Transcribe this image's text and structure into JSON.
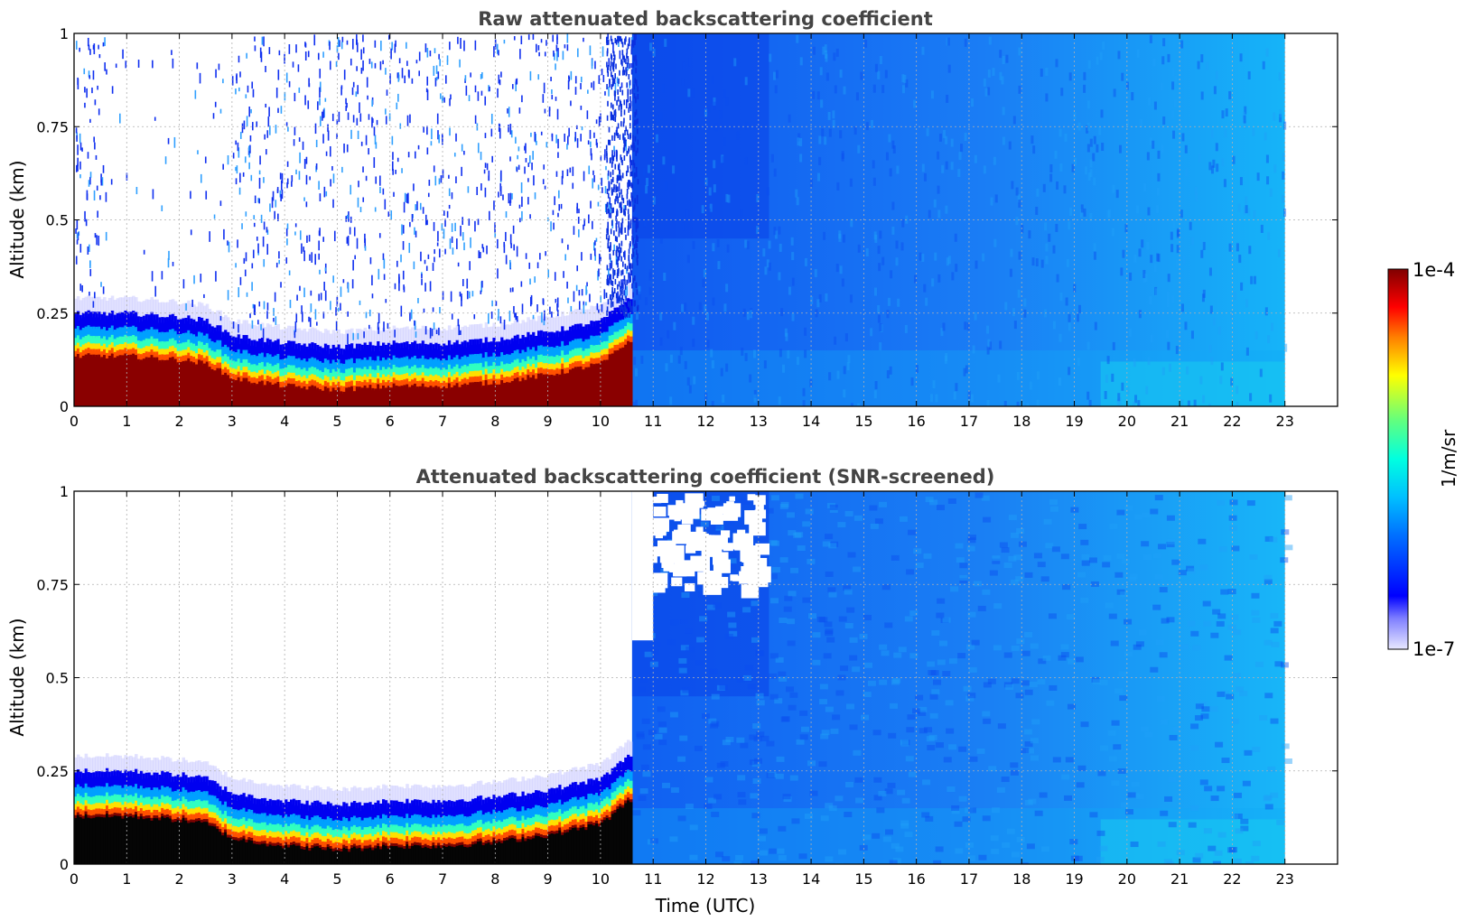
{
  "chart_data": [
    {
      "type": "heatmap",
      "title": "Raw attenuated backscattering coefficient",
      "xlabel": "",
      "ylabel": "Altitude (km)",
      "xlim": [
        0,
        24
      ],
      "ylim": [
        0,
        1
      ],
      "x_ticks": [
        "0",
        "1",
        "2",
        "3",
        "4",
        "5",
        "6",
        "7",
        "8",
        "9",
        "10",
        "11",
        "12",
        "13",
        "14",
        "15",
        "16",
        "17",
        "18",
        "19",
        "20",
        "21",
        "22",
        "23"
      ],
      "y_ticks": [
        "0",
        "0.25",
        "0.5",
        "0.75",
        "1"
      ],
      "grid": true,
      "data_extent_hours": [
        0,
        23
      ],
      "boundary_layer_top_km": [
        {
          "t": 0,
          "top": 0.25
        },
        {
          "t": 1,
          "top": 0.25
        },
        {
          "t": 2,
          "top": 0.24
        },
        {
          "t": 2.5,
          "top": 0.23
        },
        {
          "t": 3,
          "top": 0.19
        },
        {
          "t": 4,
          "top": 0.17
        },
        {
          "t": 5,
          "top": 0.16
        },
        {
          "t": 6,
          "top": 0.17
        },
        {
          "t": 7,
          "top": 0.17
        },
        {
          "t": 8,
          "top": 0.18
        },
        {
          "t": 9,
          "top": 0.2
        },
        {
          "t": 10,
          "top": 0.23
        },
        {
          "t": 10.6,
          "top": 0.3
        }
      ],
      "description_regions": [
        {
          "time_range": [
            0,
            10.6
          ],
          "altitude_km": [
            0,
            0.15
          ],
          "level": "saturated (~1e-4)"
        },
        {
          "time_range": [
            0,
            10.6
          ],
          "altitude_km": [
            0.3,
            1.0
          ],
          "level": "sparse noise"
        },
        {
          "time_range": [
            10.6,
            23
          ],
          "altitude_km": [
            0,
            1.0
          ],
          "level": "~1e-6"
        }
      ]
    },
    {
      "type": "heatmap",
      "title": "Attenuated backscattering coefficient (SNR-screened)",
      "xlabel": "Time (UTC)",
      "ylabel": "Altitude (km)",
      "xlim": [
        0,
        24
      ],
      "ylim": [
        0,
        1
      ],
      "x_ticks": [
        "0",
        "1",
        "2",
        "3",
        "4",
        "5",
        "6",
        "7",
        "8",
        "9",
        "10",
        "11",
        "12",
        "13",
        "14",
        "15",
        "16",
        "17",
        "18",
        "19",
        "20",
        "21",
        "22",
        "23"
      ],
      "y_ticks": [
        "0",
        "0.25",
        "0.5",
        "0.75",
        "1"
      ],
      "grid": true,
      "data_extent_hours": [
        0,
        23
      ],
      "screened_gap": {
        "time_range": [
          10.9,
          13
        ],
        "altitude_km": [
          0.75,
          1.0
        ]
      }
    }
  ],
  "colorbar": {
    "min_label": "1e-7",
    "max_label": "1e-4",
    "label": "1/m/sr",
    "scale": "log",
    "colormap": "jet"
  }
}
